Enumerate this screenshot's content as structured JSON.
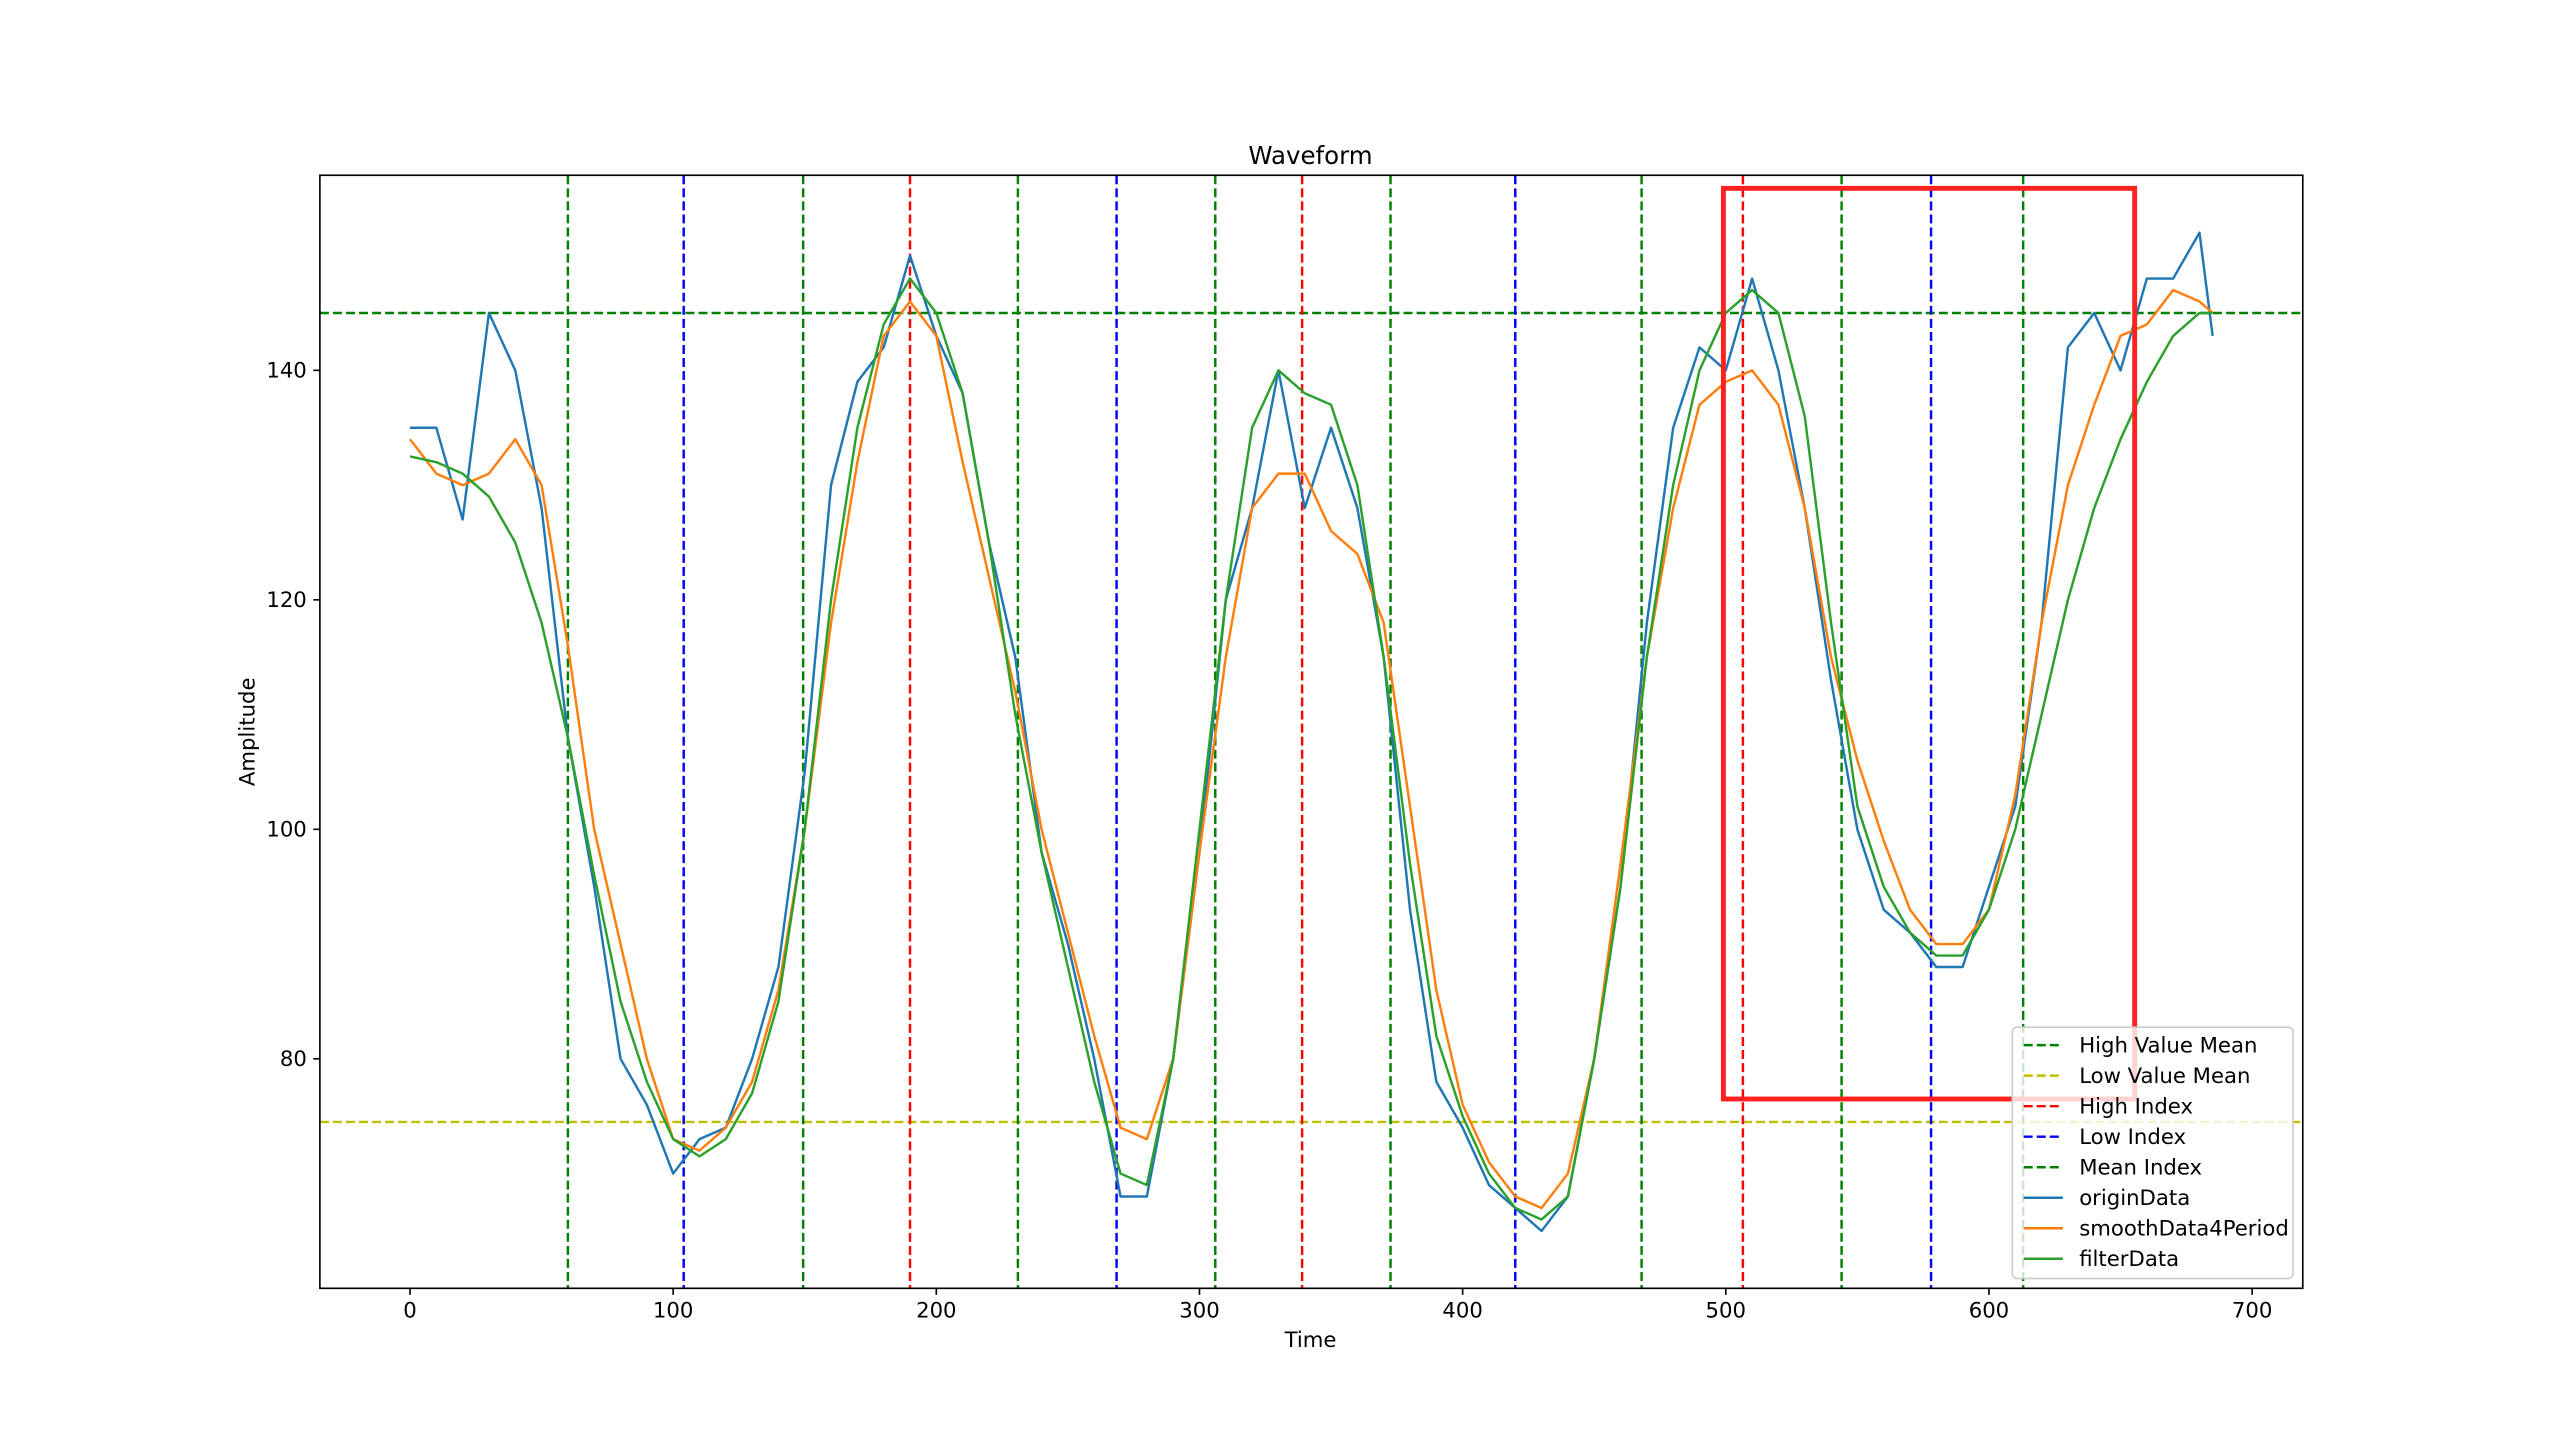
{
  "chart_data": {
    "type": "line",
    "title": "Waveform",
    "xlabel": "Time",
    "ylabel": "Amplitude",
    "xlim": [
      -34.25,
      719.25
    ],
    "ylim": [
      60,
      157
    ],
    "xticks": [
      0,
      100,
      200,
      300,
      400,
      500,
      600,
      700
    ],
    "yticks": [
      80,
      100,
      120,
      140
    ],
    "legend": "lower right",
    "hlines": [
      {
        "name": "High Value Mean",
        "color": "#008000",
        "value": 145
      },
      {
        "name": "Low Value Mean",
        "color": "#bfbf00",
        "value": 74.5
      }
    ],
    "vlines": [
      {
        "name": "High Index",
        "color": "#ff0000",
        "values": [
          190,
          339,
          506.5
        ]
      },
      {
        "name": "Low Index",
        "color": "#0000ff",
        "values": [
          104,
          268.5,
          420,
          578
        ]
      },
      {
        "name": "Mean Index",
        "color": "#008000",
        "values": [
          60,
          149.4,
          231,
          306,
          372.6,
          468,
          544,
          613
        ]
      }
    ],
    "x": [
      0,
      10,
      20,
      30,
      40,
      50,
      60,
      70,
      80,
      90,
      100,
      110,
      120,
      130,
      140,
      150,
      160,
      170,
      180,
      190,
      200,
      210,
      220,
      230,
      240,
      250,
      260,
      270,
      280,
      290,
      300,
      310,
      320,
      330,
      340,
      350,
      360,
      370,
      380,
      390,
      400,
      410,
      420,
      430,
      440,
      450,
      460,
      470,
      480,
      490,
      500,
      510,
      520,
      530,
      540,
      550,
      560,
      570,
      580,
      590,
      600,
      610,
      620,
      630,
      640,
      650,
      660,
      670,
      680,
      685
    ],
    "series": [
      {
        "name": "originData",
        "color": "#1f77b4",
        "values": [
          135,
          135,
          127,
          145,
          140,
          128,
          108,
          95,
          80,
          76,
          70,
          73,
          74,
          80,
          88,
          105,
          130,
          139,
          142,
          150,
          143,
          138,
          125,
          115,
          98,
          90,
          80,
          68,
          68,
          80,
          98,
          120,
          128,
          140,
          128,
          135,
          128,
          115,
          93,
          78,
          74,
          69,
          67,
          65,
          68,
          80,
          95,
          118,
          135,
          142,
          140,
          148,
          140,
          128,
          113,
          100,
          93,
          91,
          88,
          88,
          95,
          102,
          118,
          142,
          145,
          140,
          148,
          148,
          152,
          143
        ]
      },
      {
        "name": "smoothData4Period",
        "color": "#ff7f0e",
        "values": [
          134,
          131,
          130,
          131,
          134,
          130,
          116,
          100,
          90,
          80,
          73,
          72,
          74,
          78,
          86,
          100,
          118,
          132,
          143,
          146,
          143,
          132,
          122,
          112,
          100,
          91,
          82,
          74,
          73,
          80,
          98,
          115,
          128,
          131,
          131,
          126,
          124,
          118,
          102,
          86,
          76,
          71,
          68,
          67,
          70,
          80,
          97,
          115,
          128,
          137,
          139,
          140,
          137,
          128,
          115,
          106,
          99,
          93,
          90,
          90,
          93,
          103,
          118,
          130,
          137,
          143,
          144,
          147,
          146,
          145
        ]
      },
      {
        "name": "filterData",
        "color": "#2ca02c",
        "values": [
          132.5,
          132,
          131,
          129,
          125,
          118,
          108,
          96,
          85,
          78,
          73,
          71.5,
          73,
          77,
          85,
          100,
          120,
          135,
          144,
          148,
          145,
          138,
          125,
          110,
          98,
          88,
          78,
          70,
          69,
          80,
          100,
          120,
          135,
          140,
          138,
          137,
          130,
          115,
          97,
          82,
          75,
          70,
          67,
          66,
          68,
          80,
          95,
          115,
          130,
          140,
          145,
          147,
          145,
          136,
          118,
          102,
          95,
          91,
          89,
          89,
          93,
          100,
          110,
          120,
          128,
          134,
          139,
          143,
          145,
          145
        ]
      }
    ]
  }
}
